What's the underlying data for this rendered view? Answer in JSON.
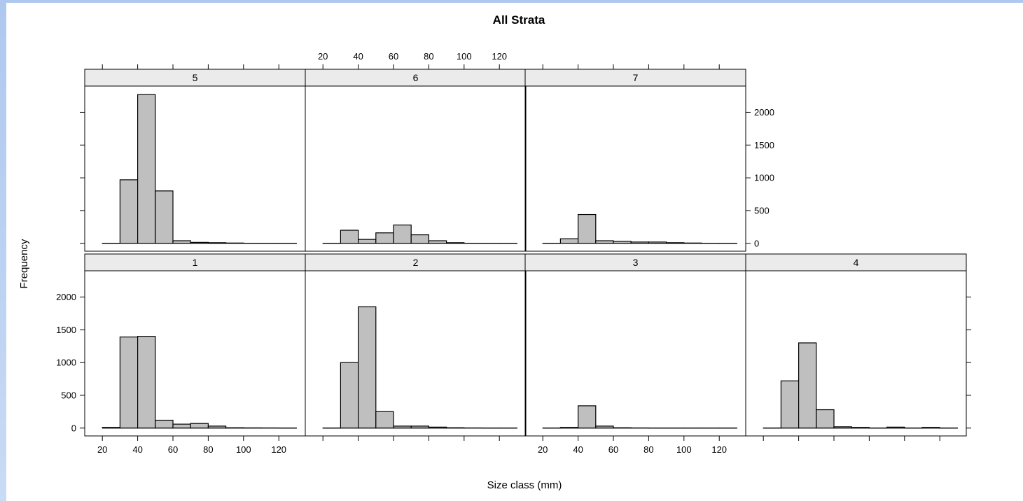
{
  "chart_data": {
    "type": "bar",
    "title": "All Strata",
    "xlabel": "Size class (mm)",
    "ylabel": "Frequency",
    "xlim": [
      10,
      135
    ],
    "ylim": [
      -120,
      2400
    ],
    "x_ticks": [
      20,
      40,
      60,
      80,
      100,
      120
    ],
    "y_ticks": [
      0,
      500,
      1000,
      1500,
      2000
    ],
    "bin_width": 10,
    "layout": "4 columns x 2 rows",
    "panels": [
      {
        "strip": "1",
        "bins": [
          20,
          30,
          40,
          50,
          60,
          70,
          80,
          90,
          100,
          110,
          120
        ],
        "values": [
          10,
          1390,
          1400,
          120,
          60,
          70,
          30,
          5,
          3,
          2,
          0
        ]
      },
      {
        "strip": "2",
        "bins": [
          20,
          30,
          40,
          50,
          60,
          70,
          80,
          90,
          100,
          110,
          120
        ],
        "values": [
          0,
          1000,
          1850,
          250,
          30,
          30,
          15,
          5,
          2,
          0,
          0
        ]
      },
      {
        "strip": "3",
        "bins": [
          20,
          30,
          40,
          50,
          60,
          70,
          80,
          90,
          100,
          110,
          120
        ],
        "values": [
          0,
          10,
          340,
          30,
          5,
          2,
          0,
          0,
          0,
          0,
          0
        ]
      },
      {
        "strip": "4",
        "bins": [
          20,
          30,
          40,
          50,
          60,
          70,
          80,
          90,
          100,
          110,
          120
        ],
        "values": [
          0,
          720,
          1300,
          280,
          20,
          10,
          0,
          15,
          0,
          10,
          0
        ]
      },
      {
        "strip": "5",
        "bins": [
          20,
          30,
          40,
          50,
          60,
          70,
          80,
          90,
          100,
          110,
          120
        ],
        "values": [
          0,
          970,
          2270,
          800,
          40,
          15,
          10,
          5,
          0,
          0,
          0
        ]
      },
      {
        "strip": "6",
        "bins": [
          20,
          30,
          40,
          50,
          60,
          70,
          80,
          90,
          100,
          110,
          120
        ],
        "values": [
          0,
          200,
          60,
          160,
          280,
          130,
          40,
          10,
          0,
          0,
          0
        ]
      },
      {
        "strip": "7",
        "bins": [
          20,
          30,
          40,
          50,
          60,
          70,
          80,
          90,
          100,
          110,
          120
        ],
        "values": [
          0,
          70,
          440,
          40,
          30,
          20,
          20,
          10,
          5,
          0,
          0
        ]
      }
    ]
  }
}
